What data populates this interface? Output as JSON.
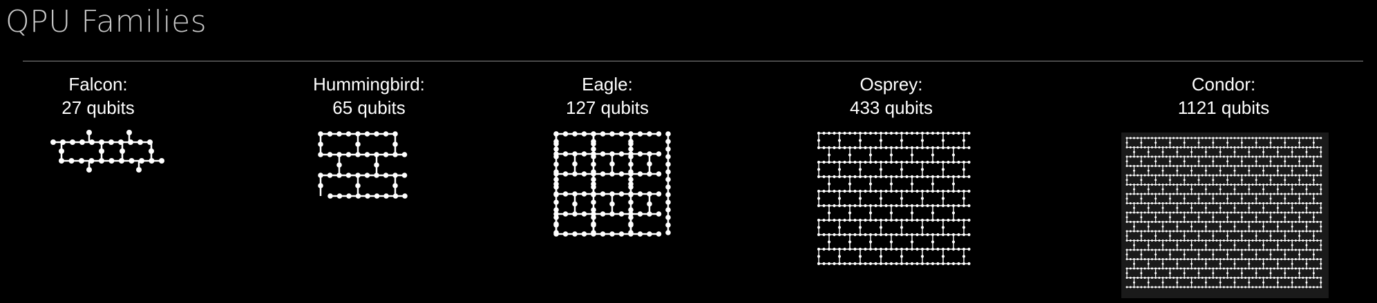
{
  "page": {
    "title": "QPU Families"
  },
  "colors": {
    "background": "#000000",
    "title": "#c9c9c9",
    "divider": "#8a8a8a",
    "lattice": "#ffffff",
    "condor_panel": "#1a1a1a"
  },
  "families": [
    {
      "name": "Falcon:",
      "qubits": "27 qubits"
    },
    {
      "name": "Hummingbird:",
      "qubits": "65 qubits"
    },
    {
      "name": "Eagle:",
      "qubits": "127 qubits"
    },
    {
      "name": "Osprey:",
      "qubits": "433 qubits"
    },
    {
      "name": "Condor:",
      "qubits": "1121 qubits"
    }
  ]
}
